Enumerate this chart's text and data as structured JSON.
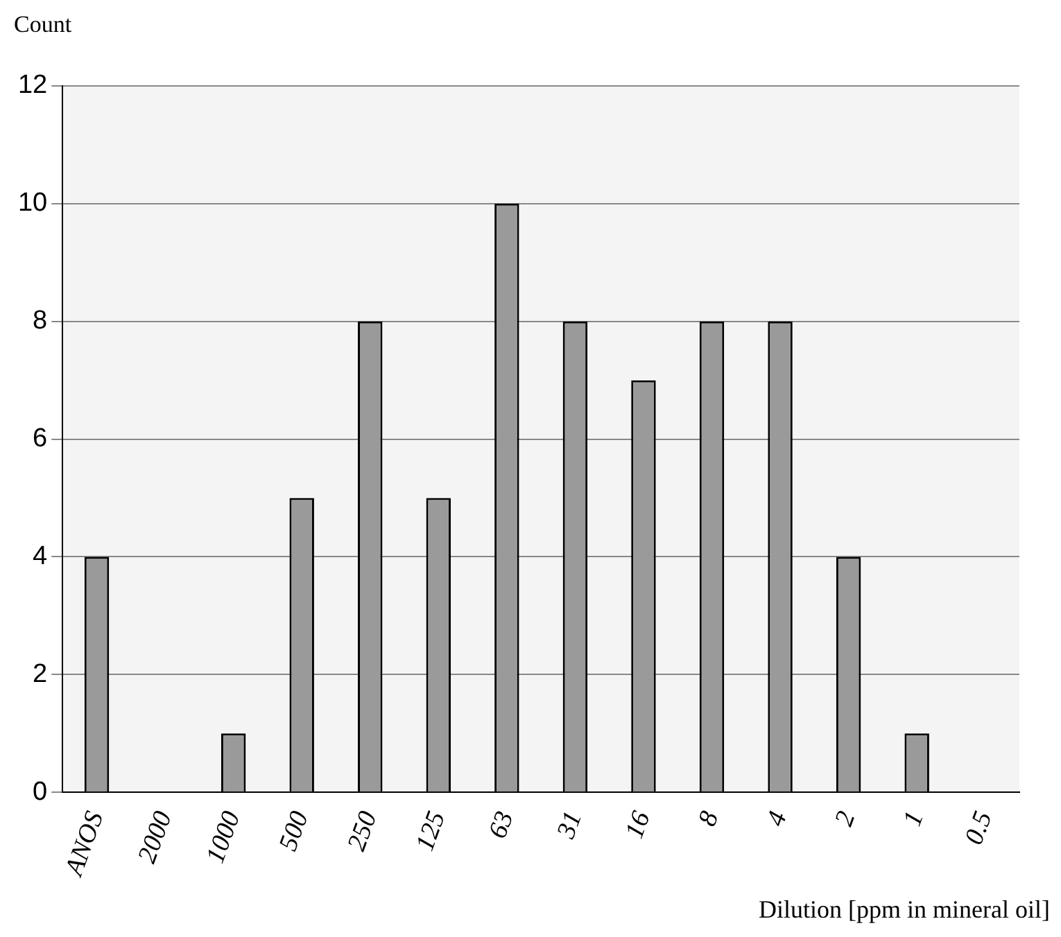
{
  "chart_data": {
    "type": "bar",
    "ylabel": "Count",
    "xlabel": "Dilution [ppm in mineral oil]",
    "categories": [
      "ANOS",
      "2000",
      "1000",
      "500",
      "250",
      "125",
      "63",
      "31",
      "16",
      "8",
      "4",
      "2",
      "1",
      "0.5"
    ],
    "values": [
      4,
      0,
      1,
      5,
      8,
      5,
      10,
      8,
      7,
      8,
      8,
      4,
      1,
      0
    ],
    "color": "#9a9a9a",
    "ylim": [
      0,
      12
    ],
    "yticks": [
      0,
      2,
      4,
      6,
      8,
      10,
      12
    ],
    "grid": "y",
    "legend": false
  }
}
